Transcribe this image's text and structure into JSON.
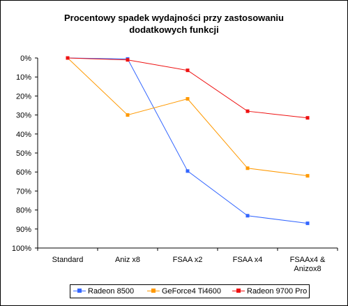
{
  "chart_data": {
    "type": "line",
    "title_lines": [
      "Procentowy spadek wydajności przy zastosowaniu",
      "dodatkowych funkcji"
    ],
    "categories": [
      [
        "Standard"
      ],
      [
        "Aniz x8"
      ],
      [
        "FSAA x2"
      ],
      [
        "FSAA x4"
      ],
      [
        "FSAAx4 &",
        "Anizox8"
      ]
    ],
    "yticks": [
      "0%",
      "10%",
      "20%",
      "30%",
      "40%",
      "50%",
      "60%",
      "70%",
      "80%",
      "90%",
      "100%"
    ],
    "ylim": [
      0,
      100
    ],
    "y_inverted": true,
    "grid": false,
    "legend_position": "bottom",
    "series": [
      {
        "name": "Radeon 8500",
        "color": "#3366ff",
        "values": [
          0,
          0.5,
          59.5,
          83,
          87
        ]
      },
      {
        "name": "GeForce4 Ti4600",
        "color": "#ff9900",
        "values": [
          0,
          30,
          21.5,
          58,
          62
        ]
      },
      {
        "name": "Radeon 9700 Pro",
        "color": "#ee1111",
        "values": [
          0,
          1,
          6.5,
          28,
          31.5
        ]
      }
    ]
  }
}
